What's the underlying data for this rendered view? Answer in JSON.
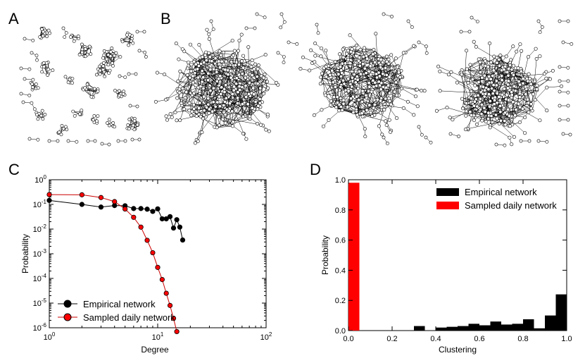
{
  "panels": [
    {
      "letter": "A"
    },
    {
      "letter": "B"
    },
    {
      "letter": "C"
    },
    {
      "letter": "D"
    }
  ],
  "colors": {
    "black_series": "#000000",
    "red_series": "#ff0000",
    "red_line": "#cc0000",
    "node_fill": "#ffffff",
    "edge": "#000000"
  },
  "chart_data": [
    {
      "type": "line",
      "panel": "C",
      "xscale": "log",
      "yscale": "log",
      "xlabel": "Degree",
      "ylabel": "Probability",
      "xlim": [
        1,
        100
      ],
      "ylim": [
        1e-06,
        1
      ],
      "x_ticks": [
        {
          "value": 1,
          "base": "10",
          "exp": "0"
        },
        {
          "value": 10,
          "base": "10",
          "exp": "1"
        },
        {
          "value": 100,
          "base": "10",
          "exp": "2"
        }
      ],
      "y_ticks": [
        {
          "value": 1,
          "base": "10",
          "exp": "0"
        },
        {
          "value": 0.1,
          "base": "10",
          "exp": "-1"
        },
        {
          "value": 0.01,
          "base": "10",
          "exp": "-2"
        },
        {
          "value": 0.001,
          "base": "10",
          "exp": "-3"
        },
        {
          "value": 0.0001,
          "base": "10",
          "exp": "-4"
        },
        {
          "value": 1e-05,
          "base": "10",
          "exp": "-5"
        },
        {
          "value": 1e-06,
          "base": "10",
          "exp": "-6"
        }
      ],
      "legend_position": "lower-left",
      "series": [
        {
          "name": "Empirical network",
          "color": "#000000",
          "x": [
            1,
            2,
            3,
            4,
            5,
            6,
            7,
            8,
            9,
            10,
            11,
            12,
            13,
            14,
            15,
            16,
            17
          ],
          "y": [
            0.145,
            0.1,
            0.078,
            0.09,
            0.088,
            0.068,
            0.068,
            0.064,
            0.052,
            0.066,
            0.026,
            0.026,
            0.032,
            0.011,
            0.024,
            0.012,
            0.0036
          ]
        },
        {
          "name": "Sampled daily network",
          "color": "#ff0000",
          "x": [
            1,
            2,
            3,
            4,
            5,
            6,
            7,
            8,
            9,
            10,
            11,
            12,
            13,
            14,
            15
          ],
          "y": [
            0.25,
            0.245,
            0.19,
            0.13,
            0.065,
            0.03,
            0.012,
            0.0035,
            0.0011,
            0.00028,
            9e-05,
            2.5e-05,
            8e-06,
            2.4e-06,
            7e-07
          ]
        }
      ]
    },
    {
      "type": "bar",
      "panel": "D",
      "xlabel": "Clustering",
      "ylabel": "Probability",
      "xlim": [
        0,
        1
      ],
      "ylim": [
        0,
        1
      ],
      "x_ticks": [
        "0.0",
        "0.2",
        "0.4",
        "0.6",
        "0.8",
        "1.0"
      ],
      "y_ticks": [
        "0.0",
        "0.2",
        "0.4",
        "0.6",
        "0.8",
        "1.0"
      ],
      "legend_position": "top-right",
      "bin_width": 0.05,
      "series": [
        {
          "name": "Empirical network",
          "color": "#000000",
          "bins": [
            {
              "x": 0.3,
              "value": 0.03
            },
            {
              "x": 0.4,
              "value": 0.02
            },
            {
              "x": 0.45,
              "value": 0.025
            },
            {
              "x": 0.5,
              "value": 0.03
            },
            {
              "x": 0.55,
              "value": 0.045
            },
            {
              "x": 0.6,
              "value": 0.035
            },
            {
              "x": 0.65,
              "value": 0.06
            },
            {
              "x": 0.7,
              "value": 0.04
            },
            {
              "x": 0.75,
              "value": 0.045
            },
            {
              "x": 0.8,
              "value": 0.075
            },
            {
              "x": 0.85,
              "value": 0.015
            },
            {
              "x": 0.9,
              "value": 0.1
            },
            {
              "x": 0.95,
              "value": 0.24
            }
          ]
        },
        {
          "name": "Sampled daily network",
          "color": "#ff0000",
          "bins": [
            {
              "x": 0.0,
              "value": 0.98
            }
          ]
        }
      ]
    }
  ]
}
